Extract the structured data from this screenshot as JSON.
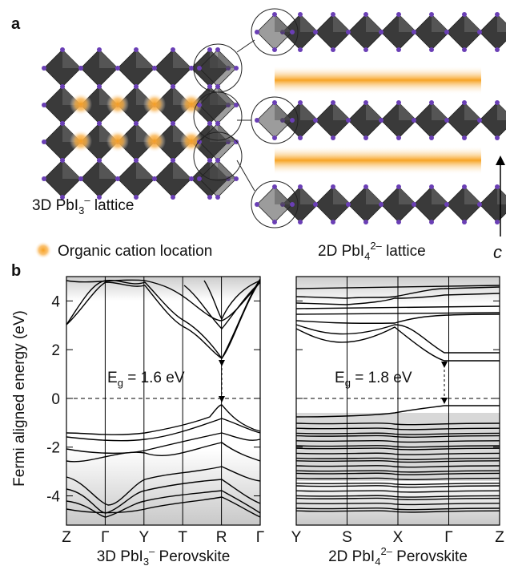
{
  "panel_a": {
    "label": "a",
    "lattice_3d": [
      "3D PbI",
      "3",
      "–",
      " lattice"
    ],
    "legend": "Organic cation location",
    "lattice_2d": [
      "2D PbI",
      "4",
      "2–",
      " lattice"
    ],
    "axis": "c"
  },
  "panel_b": {
    "label": "b",
    "ylabel": "Fermi aligned energy (eV)",
    "ylim": [
      -5.2,
      5.0
    ],
    "yticks": [
      -4,
      -2,
      0,
      2,
      4
    ],
    "plots": [
      {
        "kpoints": [
          "Z",
          "Γ",
          "Y",
          "T",
          "R",
          "Γ"
        ],
        "gap": [
          "E",
          "g",
          " = 1.6 eV"
        ],
        "title": [
          "3D PbI",
          "3",
          "–",
          " Perovskite"
        ]
      },
      {
        "kpoints": [
          "Y",
          "S",
          "X",
          "Γ",
          "Z"
        ],
        "gap": [
          "E",
          "g",
          " = 1.8 eV"
        ],
        "title": [
          "2D PbI",
          "4",
          "2–",
          " Perovskite"
        ]
      }
    ]
  }
}
